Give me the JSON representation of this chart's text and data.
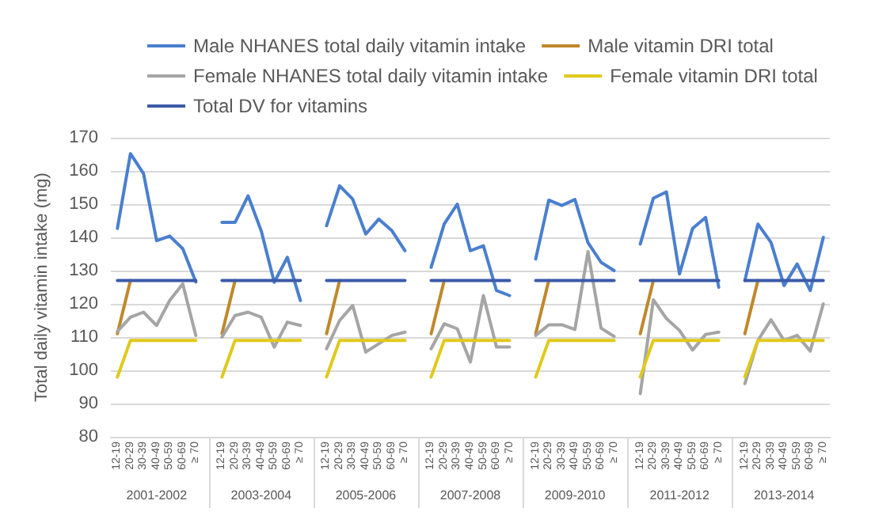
{
  "chart_data": {
    "type": "line",
    "ylabel": "Total daily vitamin intake (mg)",
    "categories": [
      "12-19",
      "20-29",
      "30-39",
      "40-49",
      "50-59",
      "60-69",
      "≥ 70",
      null,
      "12-19",
      "20-29",
      "30-39",
      "40-49",
      "50-59",
      "60-69",
      "≥ 70",
      null,
      "12-19",
      "20-29",
      "30-39",
      "40-49",
      "50-59",
      "60-69",
      "≥ 70",
      null,
      "12-19",
      "20-29",
      "30-39",
      "40-49",
      "50-59",
      "60-69",
      "≥ 70",
      null,
      "12-19",
      "20-29",
      "30-39",
      "40-49",
      "50-59",
      "60-69",
      "≥ 70",
      null,
      "12-19",
      "20-29",
      "30-39",
      "40-49",
      "50-59",
      "60-69",
      "≥ 70",
      null,
      "12-19",
      "20-29",
      "30-39",
      "40-49",
      "50-59",
      "60-69",
      "≥ 70"
    ],
    "annotations": [
      "2001-2002",
      "2003-2004",
      "2005-2006",
      "2007-2008",
      "2009-2010",
      "2011-2012",
      "2013-2014"
    ],
    "series": [
      {
        "name": "Male NHANES total daily vitamin intake",
        "color": "#4a7fcf",
        "values": [
          142.7,
          165.2,
          159.2,
          139,
          140.4,
          136.6,
          126.6,
          null,
          144.5,
          144.5,
          152.5,
          142,
          126.5,
          134,
          121,
          null,
          143.5,
          155.5,
          151.5,
          141,
          145.5,
          142,
          136,
          null,
          131,
          144,
          150,
          136,
          137.5,
          124,
          122.5,
          null,
          133.5,
          151.2,
          149.6,
          151.4,
          138.4,
          132.5,
          130,
          null,
          138,
          151.8,
          153.7,
          129,
          142.7,
          146,
          125,
          null,
          127,
          144,
          138.5,
          125.5,
          132,
          124,
          140
        ]
      },
      {
        "name": "Male vitamin DRI total",
        "color": "#c0882a",
        "values": [
          111,
          127,
          null,
          null,
          null,
          null,
          null,
          null,
          111,
          127,
          null,
          null,
          null,
          null,
          null,
          null,
          111,
          127,
          null,
          null,
          null,
          null,
          null,
          null,
          111,
          127,
          null,
          null,
          null,
          null,
          null,
          null,
          111,
          127,
          null,
          null,
          null,
          null,
          null,
          null,
          111,
          127,
          null,
          null,
          null,
          null,
          null,
          null,
          111,
          127,
          null,
          null,
          null,
          null,
          null
        ]
      },
      {
        "name": "Female NHANES total daily vitamin intake",
        "color": "#a5a5a5",
        "values": [
          111.7,
          116,
          117.5,
          113.5,
          121,
          126,
          110.5,
          null,
          110,
          116.5,
          117.5,
          116,
          107,
          114.5,
          113.5,
          null,
          106.5,
          115,
          119.5,
          105.5,
          108,
          110.5,
          111.5,
          null,
          106.5,
          114,
          112.5,
          102.5,
          122.5,
          107,
          107,
          null,
          110.5,
          113.7,
          113.7,
          112.3,
          135.7,
          112.7,
          110.2,
          null,
          93,
          121.2,
          115.6,
          112,
          106.1,
          110.8,
          111.5,
          null,
          96,
          109,
          115.2,
          109,
          110.5,
          105.8,
          120
        ]
      },
      {
        "name": "Female vitamin DRI total",
        "color": "#e0c91a",
        "values": [
          98,
          109,
          109,
          109,
          109,
          109,
          109,
          null,
          98,
          109,
          109,
          109,
          109,
          109,
          109,
          null,
          98,
          109,
          109,
          109,
          109,
          109,
          109,
          null,
          98,
          109,
          109,
          109,
          109,
          109,
          109,
          null,
          98,
          109,
          109,
          109,
          109,
          109,
          109,
          null,
          98,
          109,
          109,
          109,
          109,
          109,
          109,
          null,
          98,
          109,
          109,
          109,
          109,
          109,
          109
        ]
      },
      {
        "name": "Total DV for vitamins",
        "color": "#3b5ba8",
        "values": [
          127,
          127,
          127,
          127,
          127,
          127,
          127,
          null,
          127,
          127,
          127,
          127,
          127,
          127,
          127,
          null,
          127,
          127,
          127,
          127,
          127,
          127,
          127,
          null,
          127,
          127,
          127,
          127,
          127,
          127,
          127,
          null,
          127,
          127,
          127,
          127,
          127,
          127,
          127,
          null,
          127,
          127,
          127,
          127,
          127,
          127,
          127,
          null,
          127,
          127,
          127,
          127,
          127,
          127,
          127
        ]
      }
    ],
    "ylim": [
      80,
      170
    ],
    "yticks": [
      80,
      90,
      100,
      110,
      120,
      130,
      140,
      150,
      160,
      170
    ],
    "grid": "y",
    "legend": "top",
    "marker": "none",
    "line_style": "solid"
  }
}
